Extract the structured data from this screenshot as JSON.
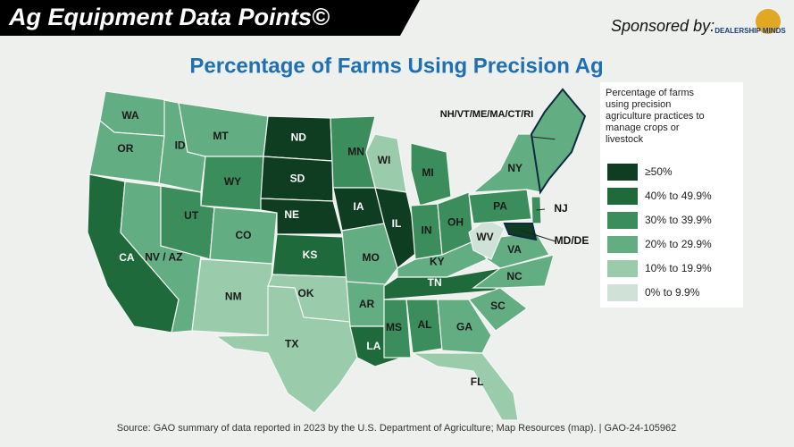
{
  "header": {
    "title": "Ag Equipment Data Points©",
    "sponsor": "Sponsored by:",
    "logo": "DEALERSHIP MINDS"
  },
  "map": {
    "title": "Percentage of Farms Using Precision Ag",
    "legend": {
      "title": "Percentage of farms using precision agriculture practices to manage crops or livestock",
      "items": [
        {
          "label": "≥50%",
          "color": "#0e3d22"
        },
        {
          "label": "40% to 49.9%",
          "color": "#1f6a3b"
        },
        {
          "label": "30% to 39.9%",
          "color": "#3b8d5c"
        },
        {
          "label": "20% to 29.9%",
          "color": "#62ad82"
        },
        {
          "label": "10% to 19.9%",
          "color": "#9accab"
        },
        {
          "label": "0% to 9.9%",
          "color": "#d0e2d7"
        }
      ]
    },
    "regions": [
      {
        "label": "WA",
        "level": 3
      },
      {
        "label": "OR",
        "level": 3
      },
      {
        "label": "CA",
        "level": 1
      },
      {
        "label": "NV / AZ",
        "level": 3
      },
      {
        "label": "ID",
        "level": 3
      },
      {
        "label": "MT",
        "level": 3
      },
      {
        "label": "WY",
        "level": 2
      },
      {
        "label": "UT",
        "level": 2
      },
      {
        "label": "CO",
        "level": 3
      },
      {
        "label": "NM",
        "level": 4
      },
      {
        "label": "ND",
        "level": 0
      },
      {
        "label": "SD",
        "level": 0
      },
      {
        "label": "NE",
        "level": 0
      },
      {
        "label": "KS",
        "level": 1
      },
      {
        "label": "OK",
        "level": 4
      },
      {
        "label": "TX",
        "level": 4
      },
      {
        "label": "MN",
        "level": 2
      },
      {
        "label": "IA",
        "level": 0
      },
      {
        "label": "MO",
        "level": 3
      },
      {
        "label": "AR",
        "level": 3
      },
      {
        "label": "LA",
        "level": 1
      },
      {
        "label": "WI",
        "level": 4
      },
      {
        "label": "IL",
        "level": 0
      },
      {
        "label": "MI",
        "level": 2
      },
      {
        "label": "IN",
        "level": 2
      },
      {
        "label": "OH",
        "level": 2
      },
      {
        "label": "KY",
        "level": 3
      },
      {
        "label": "TN",
        "level": 1
      },
      {
        "label": "MS",
        "level": 2
      },
      {
        "label": "AL",
        "level": 2
      },
      {
        "label": "GA",
        "level": 3
      },
      {
        "label": "FL",
        "level": 4
      },
      {
        "label": "SC",
        "level": 3
      },
      {
        "label": "NC",
        "level": 3
      },
      {
        "label": "VA",
        "level": 3
      },
      {
        "label": "WV",
        "level": 5
      },
      {
        "label": "PA",
        "level": 2
      },
      {
        "label": "NY",
        "level": 3
      },
      {
        "label": "NJ",
        "level": 2
      },
      {
        "label": "MD/DE",
        "level": 0
      },
      {
        "label": "NH/VT/ME/MA/CT/RI",
        "level": 3
      }
    ]
  },
  "source": "Source: GAO summary of data reported in 2023 by the U.S. Department of Agriculture; Map Resources (map).   |  GAO-24-105962"
}
